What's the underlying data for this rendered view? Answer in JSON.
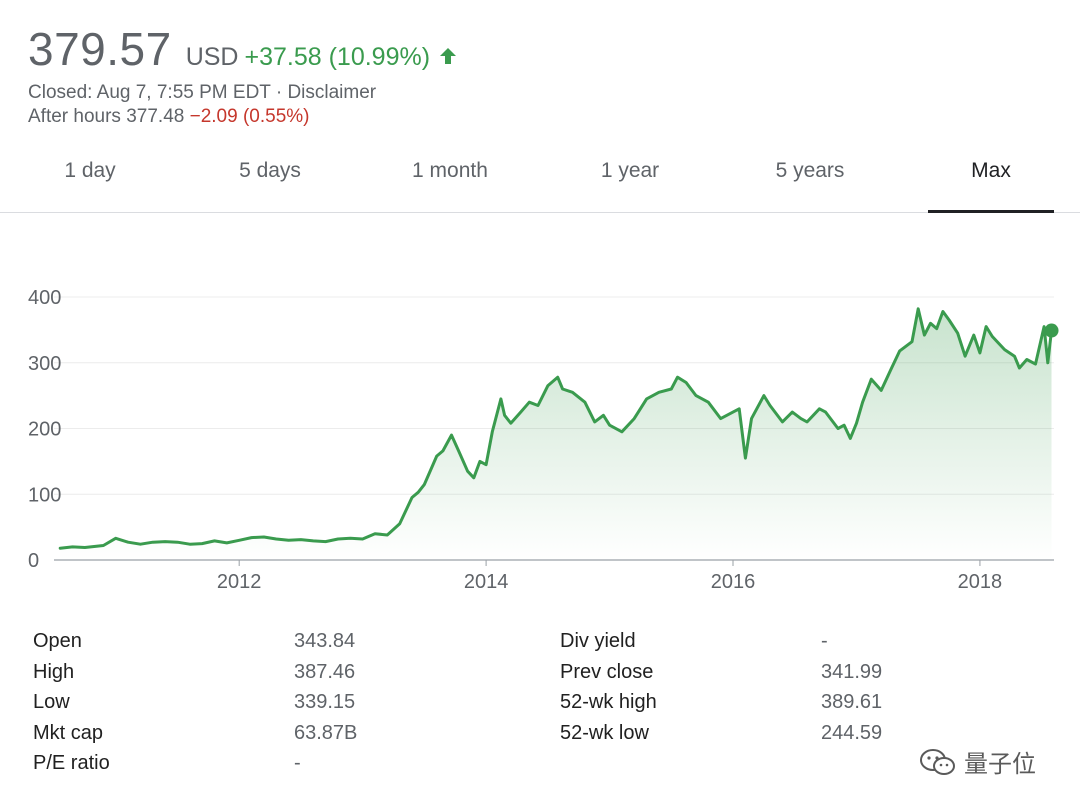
{
  "quote": {
    "price": "379.57",
    "currency": "USD",
    "change": "+37.58 (10.99%)",
    "closed_text": "Closed: Aug 7, 7:55 PM EDT · ",
    "disclaimer": "Disclaimer",
    "after_hours_label": "After hours 377.48 ",
    "after_hours_change": "−2.09 (0.55%)"
  },
  "tabs": [
    {
      "label": "1 day",
      "active": false
    },
    {
      "label": "5 days",
      "active": false
    },
    {
      "label": "1 month",
      "active": false
    },
    {
      "label": "1 year",
      "active": false
    },
    {
      "label": "5 years",
      "active": false
    },
    {
      "label": "Max",
      "active": true
    }
  ],
  "colors": {
    "up": "#3a9b4e",
    "down": "#c5372c",
    "line": "#3a9b4e"
  },
  "chart_data": {
    "type": "area",
    "ylim": [
      0,
      400
    ],
    "yticks": [
      0,
      100,
      200,
      300,
      400
    ],
    "y_tick_labels": [
      "0",
      "100",
      "200",
      "300",
      "400"
    ],
    "xlim": [
      2010.5,
      2018.6
    ],
    "xticks": [
      2012,
      2014,
      2016,
      2018
    ],
    "x_tick_labels": [
      "2012",
      "2014",
      "2016",
      "2018"
    ],
    "grid": true,
    "series": [
      {
        "x": [
          2010.55,
          2010.65,
          2010.75,
          2010.9,
          2011.0,
          2011.1,
          2011.2,
          2011.3,
          2011.4,
          2011.5,
          2011.6,
          2011.7,
          2011.8,
          2011.9,
          2012.0,
          2012.1,
          2012.2,
          2012.3,
          2012.4,
          2012.5,
          2012.6,
          2012.7,
          2012.8,
          2012.9,
          2013.0,
          2013.1,
          2013.2,
          2013.3,
          2013.4,
          2013.45,
          2013.5,
          2013.6,
          2013.65,
          2013.72,
          2013.78,
          2013.85,
          2013.9,
          2013.95,
          2014.0,
          2014.05,
          2014.12,
          2014.15,
          2014.2,
          2014.28,
          2014.35,
          2014.42,
          2014.5,
          2014.58,
          2014.62,
          2014.7,
          2014.8,
          2014.88,
          2014.95,
          2015.0,
          2015.1,
          2015.2,
          2015.3,
          2015.4,
          2015.5,
          2015.55,
          2015.62,
          2015.7,
          2015.8,
          2015.9,
          2016.0,
          2016.05,
          2016.1,
          2016.15,
          2016.25,
          2016.3,
          2016.4,
          2016.48,
          2016.55,
          2016.6,
          2016.7,
          2016.75,
          2016.85,
          2016.9,
          2016.95,
          2017.0,
          2017.05,
          2017.12,
          2017.2,
          2017.28,
          2017.35,
          2017.45,
          2017.5,
          2017.55,
          2017.6,
          2017.65,
          2017.7,
          2017.75,
          2017.82,
          2017.88,
          2017.95,
          2018.0,
          2018.05,
          2018.1,
          2018.2,
          2018.28,
          2018.32,
          2018.38,
          2018.45,
          2018.52,
          2018.55,
          2018.58
        ],
        "y": [
          18,
          20,
          19,
          22,
          33,
          27,
          24,
          27,
          28,
          27,
          24,
          25,
          29,
          26,
          30,
          34,
          35,
          32,
          30,
          31,
          29,
          28,
          32,
          33,
          32,
          40,
          38,
          55,
          95,
          103,
          115,
          158,
          166,
          190,
          165,
          135,
          125,
          150,
          145,
          195,
          245,
          220,
          208,
          225,
          240,
          235,
          265,
          278,
          260,
          255,
          240,
          210,
          220,
          205,
          195,
          215,
          245,
          255,
          260,
          278,
          270,
          250,
          240,
          215,
          225,
          230,
          155,
          215,
          250,
          235,
          210,
          225,
          215,
          210,
          230,
          225,
          200,
          205,
          185,
          208,
          240,
          275,
          258,
          290,
          318,
          332,
          382,
          342,
          360,
          352,
          378,
          365,
          345,
          310,
          342,
          315,
          355,
          340,
          320,
          310,
          292,
          305,
          298,
          355,
          300,
          349
        ]
      }
    ]
  },
  "stats": {
    "left": [
      {
        "label": "Open",
        "value": "343.84"
      },
      {
        "label": "High",
        "value": "387.46"
      },
      {
        "label": "Low",
        "value": "339.15"
      },
      {
        "label": "Mkt cap",
        "value": "63.87B"
      },
      {
        "label": "P/E ratio",
        "value": "-"
      }
    ],
    "right": [
      {
        "label": "Div yield",
        "value": "-"
      },
      {
        "label": "Prev close",
        "value": "341.99"
      },
      {
        "label": "52-wk high",
        "value": "389.61"
      },
      {
        "label": "52-wk low",
        "value": "244.59"
      }
    ]
  },
  "watermark": {
    "text": "量子位",
    "icon": "wechat-icon"
  }
}
